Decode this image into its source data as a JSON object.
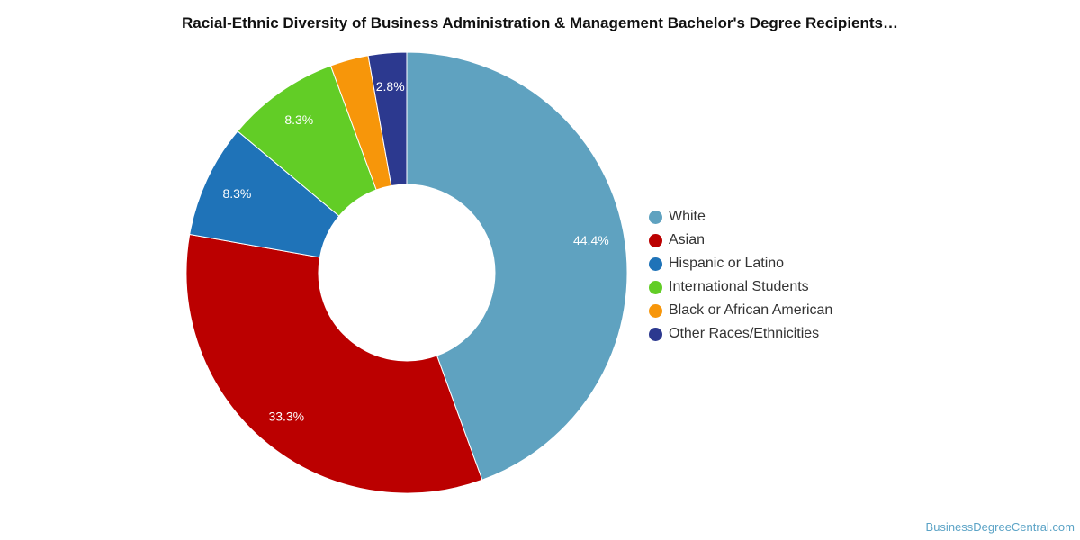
{
  "chart_data": {
    "type": "pie",
    "title": "Racial-Ethnic Diversity of Business Administration & Management Bachelor's Degree Recipients…",
    "donut": true,
    "legend_position": "right",
    "series": [
      {
        "name": "White",
        "value": 44.4,
        "label": "44.4%",
        "color": "#5fa2c0"
      },
      {
        "name": "Asian",
        "value": 33.3,
        "label": "33.3%",
        "color": "#bb0000"
      },
      {
        "name": "Hispanic or Latino",
        "value": 8.3,
        "label": "8.3%",
        "color": "#1f73b8"
      },
      {
        "name": "International Students",
        "value": 8.3,
        "label": "8.3%",
        "color": "#62cd26"
      },
      {
        "name": "Black or African American",
        "value": 2.8,
        "label": "",
        "color": "#f7960a"
      },
      {
        "name": "Other Races/Ethnicities",
        "value": 2.8,
        "label": "2.8%",
        "color": "#2c398f"
      }
    ]
  },
  "credit": "BusinessDegreeCentral.com"
}
